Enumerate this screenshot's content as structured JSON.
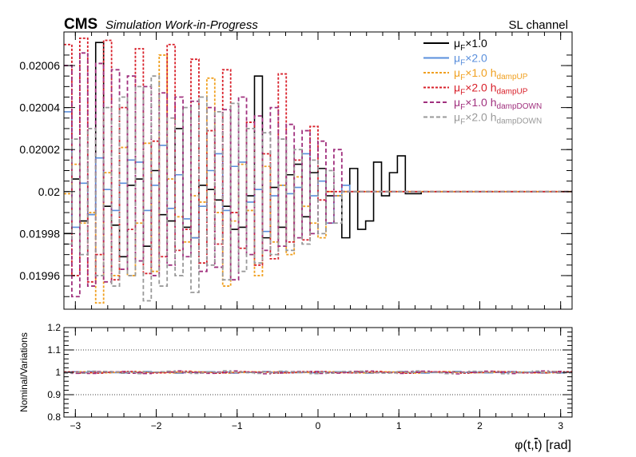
{
  "header": {
    "experiment": "CMS",
    "status": "Simulation Work-in-Progress",
    "channel": "SL channel"
  },
  "chart_data": [
    {
      "type": "line",
      "step": true,
      "xlim": [
        -3.1416,
        3.1416
      ],
      "ylim": [
        0.019944,
        0.020076
      ],
      "yticks": [
        "0.01996",
        "0.01998",
        "0.02",
        "0.02002",
        "0.02004",
        "0.02006"
      ],
      "ytick_values": [
        0.01996,
        0.01998,
        0.02,
        0.02002,
        0.02004,
        0.02006
      ],
      "legend_position": "top-right",
      "series": [
        {
          "label_main": "μ",
          "label_sub": "F",
          "label_tail": "×1.0",
          "label_sub2": "",
          "color": "#000000",
          "dash": "solid",
          "values": [
            0.01998,
            0.020006,
            0.019986,
            0.019989,
            0.020071,
            0.019993,
            0.019984,
            0.019969,
            0.020003,
            0.020006,
            0.019974,
            0.02001,
            0.019989,
            0.019986,
            0.02003,
            0.019983,
            0.019978,
            0.020003,
            0.020001,
            0.019996,
            0.019993,
            0.019982,
            0.019983,
            0.019998,
            0.020055,
            0.019978,
            0.020002,
            0.019983,
            0.020008,
            0.020013,
            0.019988,
            0.020009,
            0.020011,
            0.019998,
            0.019998,
            0.019978,
            0.020011,
            0.019982,
            0.019986,
            0.020014,
            0.019998,
            0.020009,
            0.020017,
            0.019999,
            0.019999,
            0.02,
            0.02,
            0.02,
            0.02,
            0.02,
            0.02,
            0.02,
            0.02,
            0.02,
            0.02,
            0.02,
            0.02,
            0.02,
            0.02,
            0.02,
            0.02,
            0.02,
            0.02,
            0.02
          ]
        },
        {
          "label_main": "μ",
          "label_sub": "F",
          "label_tail": "×2.0",
          "label_sub2": "",
          "color": "#5a8fdc",
          "dash": "solid",
          "values": [
            0.020038,
            0.019983,
            0.020004,
            0.019989,
            0.020016,
            0.020001,
            0.019991,
            0.020004,
            0.020015,
            0.020014,
            0.019991,
            0.020003,
            0.020022,
            0.019992,
            0.020008,
            0.019987,
            0.019978,
            0.019993,
            0.02001,
            0.020018,
            0.019991,
            0.020012,
            0.020014,
            0.019995,
            0.020001,
            0.019981,
            0.019998,
            0.020003,
            0.019999,
            0.020002,
            0.020018,
            0.019998,
            0.020005,
            0.019985,
            0.019998,
            0.020003,
            0.02,
            0.02,
            0.02,
            0.02,
            0.02,
            0.02,
            0.02,
            0.02,
            0.02,
            0.02,
            0.02,
            0.02,
            0.02,
            0.02,
            0.02,
            0.02,
            0.02,
            0.02,
            0.02,
            0.02,
            0.02,
            0.02,
            0.02,
            0.02,
            0.02,
            0.02,
            0.02,
            0.02
          ]
        },
        {
          "label_main": "μ",
          "label_sub": "F",
          "label_tail": "×1.0 h",
          "label_sub2": "dampUP",
          "color": "#f0a020",
          "dash": "3,2",
          "values": [
            0.019999,
            0.020013,
            0.019985,
            0.01999,
            0.019947,
            0.020009,
            0.01996,
            0.020021,
            0.01996,
            0.019985,
            0.020023,
            0.019962,
            0.020065,
            0.020006,
            0.019988,
            0.019976,
            0.019998,
            0.019995,
            0.020054,
            0.01999,
            0.019955,
            0.019986,
            0.020013,
            0.019991,
            0.01996,
            0.020012,
            0.019976,
            0.020003,
            0.01997,
            0.020007,
            0.019993,
            0.019985,
            0.019978,
            0.02,
            0.019998,
            0.02,
            0.02,
            0.02,
            0.02,
            0.02,
            0.02,
            0.02,
            0.02,
            0.02,
            0.02,
            0.02,
            0.02,
            0.02,
            0.02,
            0.02,
            0.02,
            0.02,
            0.02,
            0.02,
            0.02,
            0.02,
            0.02,
            0.02,
            0.02,
            0.02,
            0.02,
            0.02,
            0.02,
            0.02
          ]
        },
        {
          "label_main": "μ",
          "label_sub": "F",
          "label_tail": "×2.0 h",
          "label_sub2": "dampUP",
          "color": "#d8202a",
          "dash": "3,2",
          "values": [
            0.02007,
            0.01996,
            0.020073,
            0.019957,
            0.01997,
            0.020072,
            0.019958,
            0.02004,
            0.019982,
            0.020068,
            0.019961,
            0.020024,
            0.019969,
            0.02007,
            0.019972,
            0.019982,
            0.020063,
            0.019966,
            0.020029,
            0.019975,
            0.020058,
            0.01999,
            0.019973,
            0.020033,
            0.019965,
            0.020018,
            0.019968,
            0.020056,
            0.019976,
            0.020015,
            0.019977,
            0.020031,
            0.019996,
            0.02,
            0.02,
            0.02,
            0.02,
            0.02,
            0.02,
            0.02,
            0.02,
            0.02,
            0.02,
            0.02,
            0.02,
            0.02,
            0.02,
            0.02,
            0.02,
            0.02,
            0.02,
            0.02,
            0.02,
            0.02,
            0.02,
            0.02,
            0.02,
            0.02,
            0.02,
            0.02,
            0.02,
            0.02,
            0.02,
            0.02
          ]
        },
        {
          "label_main": "μ",
          "label_sub": "F",
          "label_tail": "×1.0 h",
          "label_sub2": "dampDOWN",
          "color": "#a0307e",
          "dash": "5,3",
          "values": [
            0.02006,
            0.01995,
            0.020066,
            0.019955,
            0.020061,
            0.019957,
            0.020058,
            0.019963,
            0.020055,
            0.019967,
            0.02005,
            0.01996,
            0.020047,
            0.019965,
            0.020045,
            0.019969,
            0.020043,
            0.019962,
            0.02004,
            0.019964,
            0.020039,
            0.019958,
            0.020045,
            0.01997,
            0.020036,
            0.019972,
            0.02004,
            0.019974,
            0.020032,
            0.019978,
            0.020029,
            0.01998,
            0.020024,
            0.019985,
            0.02002,
            0.02,
            0.02,
            0.02,
            0.02,
            0.02,
            0.02,
            0.02,
            0.02,
            0.02,
            0.02,
            0.02,
            0.02,
            0.02,
            0.02,
            0.02,
            0.02,
            0.02,
            0.02,
            0.02,
            0.02,
            0.02,
            0.02,
            0.02,
            0.02,
            0.02,
            0.02,
            0.02,
            0.02,
            0.02
          ]
        },
        {
          "label_main": "μ",
          "label_sub": "F",
          "label_tail": "×2.0 h",
          "label_sub2": "dampDOWN",
          "color": "#999999",
          "dash": "5,3",
          "values": [
            0.019975,
            0.020025,
            0.01997,
            0.02003,
            0.01996,
            0.02004,
            0.019955,
            0.020045,
            0.01996,
            0.02005,
            0.019948,
            0.020055,
            0.019955,
            0.020035,
            0.01996,
            0.02004,
            0.019952,
            0.020045,
            0.019965,
            0.020038,
            0.019958,
            0.020042,
            0.019962,
            0.02003,
            0.019966,
            0.020028,
            0.01997,
            0.020025,
            0.019972,
            0.02002,
            0.019975,
            0.020015,
            0.01998,
            0.02001,
            0.019985,
            0.02,
            0.02,
            0.02,
            0.02,
            0.02,
            0.02,
            0.02,
            0.02,
            0.02,
            0.02,
            0.02,
            0.02,
            0.02,
            0.02,
            0.02,
            0.02,
            0.02,
            0.02,
            0.02,
            0.02,
            0.02,
            0.02,
            0.02,
            0.02,
            0.02,
            0.02,
            0.02,
            0.02,
            0.02
          ]
        }
      ]
    },
    {
      "type": "line",
      "step": true,
      "ylabel": "Nominal/Variations",
      "xlabel_main": "φ(t,",
      "xlabel_bar": "t",
      "xlabel_tail": ") [rad]",
      "xlim": [
        -3.1416,
        3.1416
      ],
      "ylim": [
        0.8,
        1.2
      ],
      "yticks": [
        "0.8",
        "0.9",
        "1",
        "1.1",
        "1.2"
      ],
      "ytick_values": [
        0.8,
        0.9,
        1.0,
        1.1,
        1.2
      ],
      "xticks": [
        "−3",
        "−2",
        "−1",
        "0",
        "1",
        "2",
        "3"
      ],
      "xtick_values": [
        -3,
        -2,
        -1,
        0,
        1,
        2,
        3
      ],
      "grid": true,
      "gridlines": [
        0.9,
        1.0,
        1.1
      ],
      "ratio_amplitudes": [
        0.004,
        0.004,
        0.005,
        0.007,
        0.007
      ]
    }
  ]
}
